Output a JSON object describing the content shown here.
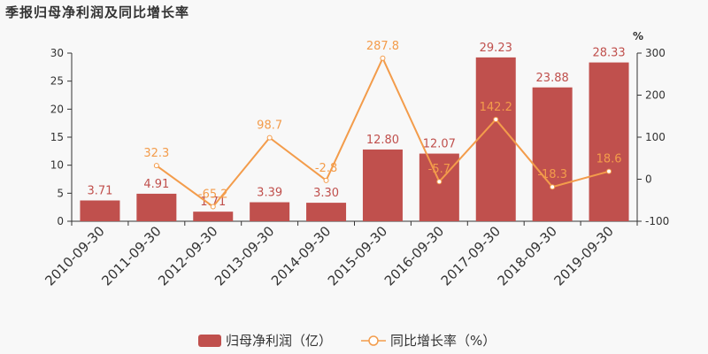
{
  "title": "季报归母净利润及同比增长率",
  "chart_data": {
    "type": "bar",
    "categories": [
      "2010-09-30",
      "2011-09-30",
      "2012-09-30",
      "2013-09-30",
      "2014-09-30",
      "2015-09-30",
      "2016-09-30",
      "2017-09-30",
      "2018-09-30",
      "2019-09-30"
    ],
    "series": [
      {
        "name": "归母净利润（亿）",
        "type": "bar",
        "axis": "left",
        "values": [
          3.71,
          4.91,
          1.71,
          3.39,
          3.3,
          12.8,
          12.07,
          29.23,
          23.88,
          28.33
        ],
        "labels": [
          "3.71",
          "4.91",
          "1.71",
          "3.39",
          "3.30",
          "12.80",
          "12.07",
          "29.23",
          "23.88",
          "28.33"
        ],
        "color": "#c0504d"
      },
      {
        "name": "同比增长率（%）",
        "type": "line",
        "axis": "right",
        "values": [
          null,
          32.3,
          -65.2,
          98.7,
          -2.8,
          287.8,
          -5.7,
          142.2,
          -18.3,
          18.6
        ],
        "labels": [
          "",
          "32.3",
          "-65.2",
          "98.7",
          "-2.8",
          "287.8",
          "-5.7",
          "142.2",
          "-18.3",
          "18.6"
        ],
        "color": "#f39c4b"
      }
    ],
    "y_left": {
      "min": 0,
      "max": 30,
      "ticks": [
        0,
        5,
        10,
        15,
        20,
        25,
        30
      ]
    },
    "y_right": {
      "min": -100,
      "max": 300,
      "ticks": [
        -100,
        0,
        100,
        200,
        300
      ],
      "unit": "%"
    },
    "legend_position": "bottom-center",
    "grid": false
  }
}
